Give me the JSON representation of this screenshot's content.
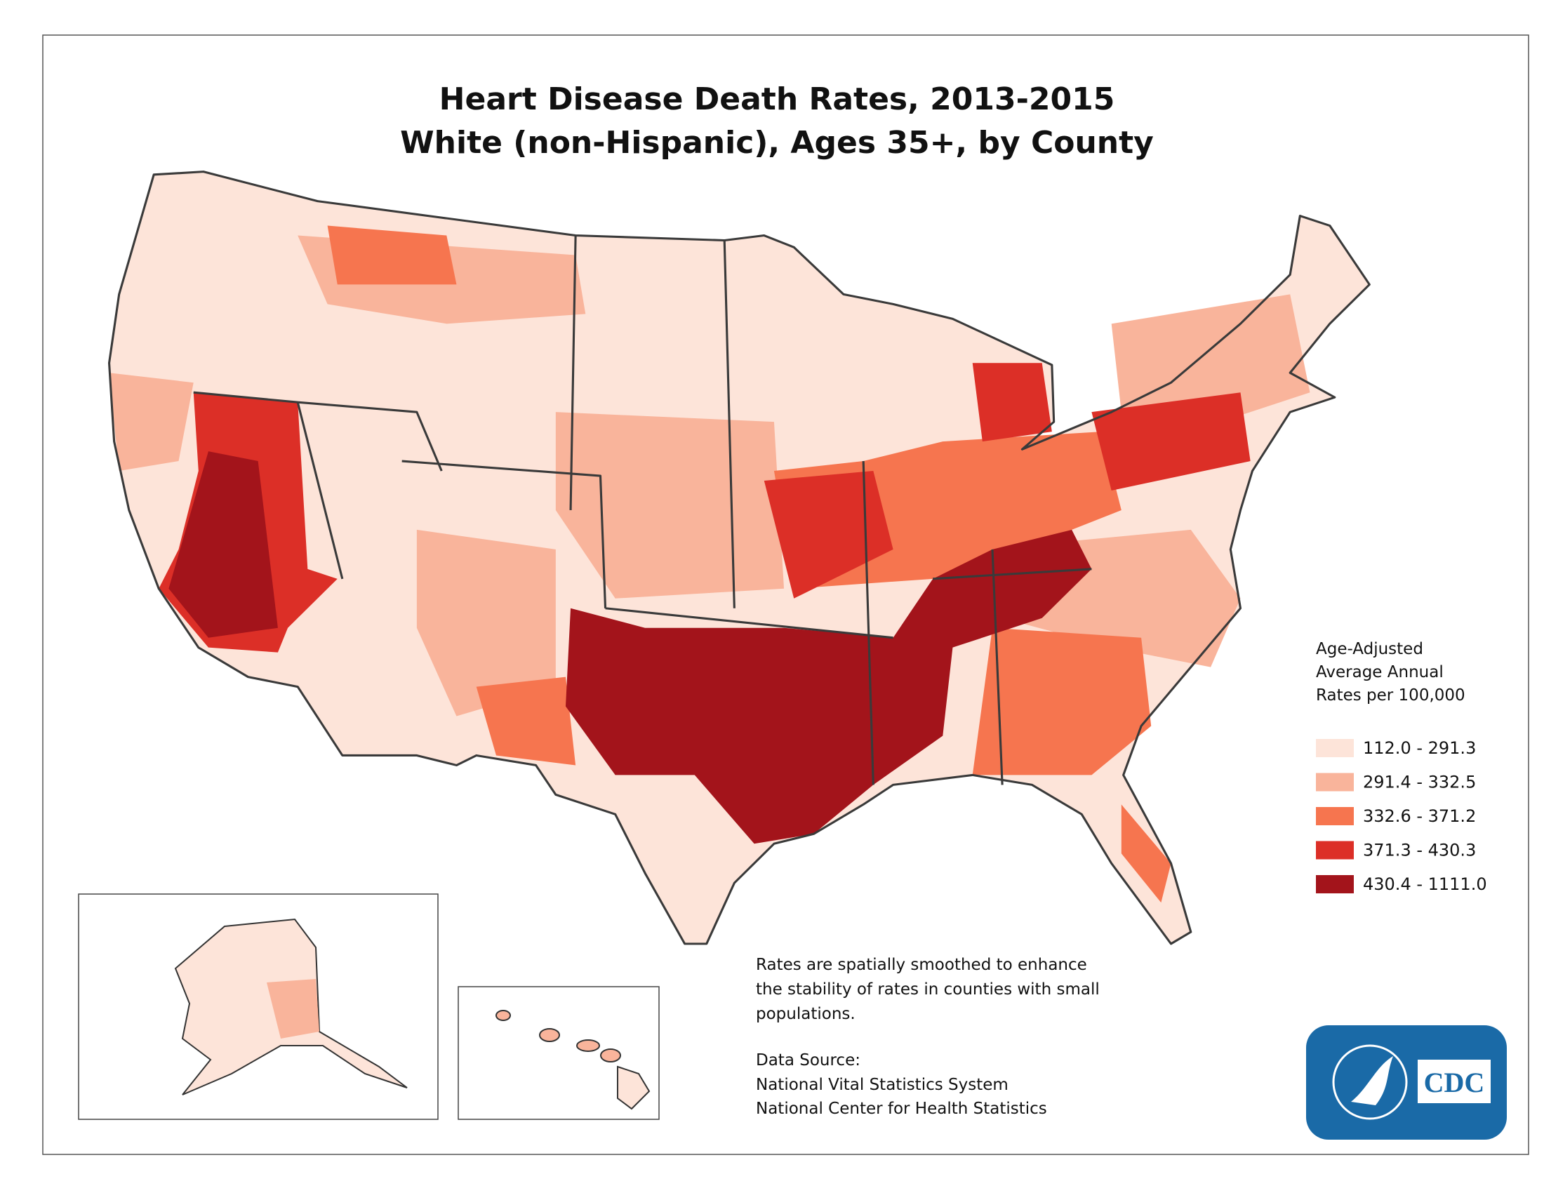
{
  "title": {
    "line1": "Heart Disease Death Rates, 2013-2015",
    "line2": "White (non-Hispanic), Ages 35+, by County"
  },
  "legend": {
    "title_lines": [
      "Age-Adjusted",
      "Average Annual",
      "Rates per 100,000"
    ],
    "items": [
      {
        "label": "112.0 - 291.3",
        "color": "#fde4d9"
      },
      {
        "label": "291.4 - 332.5",
        "color": "#f9b49b"
      },
      {
        "label": "332.6 - 371.2",
        "color": "#f6754f"
      },
      {
        "label": "371.3 - 430.3",
        "color": "#dc2f27"
      },
      {
        "label": "430.4 - 1111.0",
        "color": "#a3141b"
      }
    ]
  },
  "notes": {
    "lines": [
      "Rates are spatially smoothed to enhance",
      "the stability of rates in counties with small",
      "populations."
    ]
  },
  "source": {
    "heading": "Data Source:",
    "lines": [
      "National Vital Statistics System",
      "National Center for Health Statistics"
    ]
  },
  "logo": {
    "text": "CDC"
  }
}
